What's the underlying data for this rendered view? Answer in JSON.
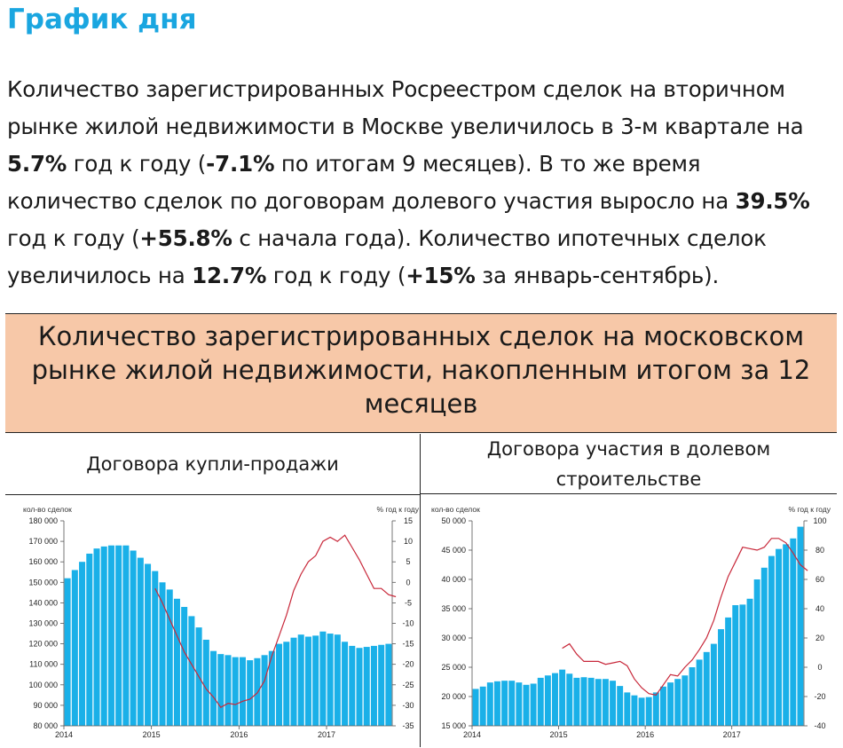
{
  "page_title": "График дня",
  "paragraph": [
    {
      "t": "Количество зарегистрированных Росреестром сделок на вторичном рынке жилой недвижимости в Москве увеличилось в 3-м квартале на ",
      "b": false
    },
    {
      "t": "5.7%",
      "b": true
    },
    {
      "t": " год к году (",
      "b": false
    },
    {
      "t": "-7.1%",
      "b": true
    },
    {
      "t": " по итогам 9 месяцев). В то же время количество сделок по договорам долевого участия выросло на ",
      "b": false
    },
    {
      "t": "39.5%",
      "b": true
    },
    {
      "t": " год к году (",
      "b": false
    },
    {
      "t": "+55.8%",
      "b": true
    },
    {
      "t": " с начала года). Количество ипотечных сделок увеличилось на ",
      "b": false
    },
    {
      "t": "12.7%",
      "b": true
    },
    {
      "t": " год к году (",
      "b": false
    },
    {
      "t": "+15%",
      "b": true
    },
    {
      "t": " за январь-сентябрь).",
      "b": false
    }
  ],
  "table_header": "Количество зарегистрированных сделок на московском рынке жилой недвижимости, накопленным итогом за 12 месяцев",
  "colors": {
    "bar": "#1ab0e8",
    "line": "#c8283a",
    "header_bg": "#f7c8a8",
    "title": "#1aa6e0"
  },
  "chart_data": [
    {
      "type": "bar",
      "title": "Договора купли-продажи",
      "ylabel_left": "кол-во сделок",
      "ylabel_right": "% год к году",
      "x_tick_labels": [
        "2014",
        "2015",
        "2016",
        "2017"
      ],
      "x_tick_index": [
        0,
        12,
        24,
        36
      ],
      "ylim_left": [
        80000,
        180000
      ],
      "yticks_left": [
        80000,
        90000,
        100000,
        110000,
        120000,
        130000,
        140000,
        150000,
        160000,
        170000,
        180000
      ],
      "ytick_labels_left": [
        "80 000",
        "90 000",
        "100 000",
        "110 000",
        "120 000",
        "130 000",
        "140 000",
        "150 000",
        "160 000",
        "170 000",
        "180 000"
      ],
      "ylim_right": [
        -35,
        15
      ],
      "yticks_right": [
        -35,
        -30,
        -25,
        -20,
        -15,
        -10,
        -5,
        0,
        5,
        10,
        15
      ],
      "ytick_labels_right": [
        "-35",
        "-30",
        "-25",
        "-20",
        "-15",
        "-10",
        "-5",
        "0",
        "5",
        "10",
        "15"
      ],
      "series": [
        {
          "kind": "bar",
          "axis": "left",
          "values": [
            152000,
            156000,
            160000,
            164000,
            166500,
            167500,
            168000,
            168000,
            168000,
            165500,
            162000,
            159000,
            155500,
            150000,
            146500,
            142000,
            138000,
            133500,
            128000,
            122000,
            116500,
            115000,
            114500,
            113500,
            113500,
            112000,
            113000,
            114500,
            116500,
            120000,
            121000,
            123000,
            124500,
            123500,
            124000,
            126000,
            125000,
            124500,
            121000,
            119000,
            118000,
            118500,
            119000,
            119500,
            120000
          ]
        },
        {
          "kind": "line",
          "axis": "right",
          "start_index": 12,
          "values": [
            -1.5,
            -5,
            -9,
            -13,
            -17,
            -20,
            -23,
            -26,
            -28,
            -30.5,
            -29.5,
            -29.8,
            -29,
            -28.5,
            -27,
            -24,
            -18,
            -13,
            -8,
            -2,
            2,
            5,
            6.5,
            10,
            11,
            10,
            11.5,
            8.5,
            5.5,
            2,
            -1.5,
            -1.5,
            -3,
            -3.5
          ]
        }
      ]
    },
    {
      "type": "bar",
      "title": "Договора участия в долевом строительстве",
      "ylabel_left": "кол-во сделок",
      "ylabel_right": "% год к году",
      "x_tick_labels": [
        "2014",
        "2015",
        "2016",
        "2017"
      ],
      "x_tick_index": [
        0,
        12,
        24,
        36
      ],
      "ylim_left": [
        15000,
        50000
      ],
      "yticks_left": [
        15000,
        20000,
        25000,
        30000,
        35000,
        40000,
        45000,
        50000
      ],
      "ytick_labels_left": [
        "15 000",
        "20 000",
        "25 000",
        "30 000",
        "35 000",
        "40 000",
        "45 000",
        "50 000"
      ],
      "ylim_right": [
        -40,
        100
      ],
      "yticks_right": [
        -40,
        -20,
        0,
        20,
        40,
        60,
        80,
        100
      ],
      "ytick_labels_right": [
        "-40",
        "-20",
        "0",
        "20",
        "40",
        "60",
        "80",
        "100"
      ],
      "series": [
        {
          "kind": "bar",
          "axis": "left",
          "values": [
            21300,
            21700,
            22400,
            22600,
            22700,
            22700,
            22400,
            22000,
            22200,
            23200,
            23600,
            24000,
            24600,
            23900,
            23200,
            23300,
            23200,
            23000,
            23000,
            22700,
            21800,
            20700,
            20200,
            19800,
            19900,
            20700,
            21700,
            22400,
            23000,
            23600,
            25000,
            26300,
            27600,
            29000,
            31500,
            33500,
            35600,
            35700,
            36700,
            40000,
            42000,
            44000,
            45200,
            46000,
            47000,
            49000
          ]
        },
        {
          "kind": "line",
          "axis": "right",
          "start_index": 12,
          "values": [
            13,
            16,
            9,
            4,
            4,
            4,
            2,
            3,
            4,
            1,
            -8,
            -14,
            -18,
            -19,
            -12,
            -5,
            -6,
            0,
            5,
            12,
            20,
            32,
            48,
            62,
            72,
            82,
            81,
            80,
            82,
            88,
            88,
            85,
            78,
            70,
            66
          ]
        }
      ]
    }
  ]
}
